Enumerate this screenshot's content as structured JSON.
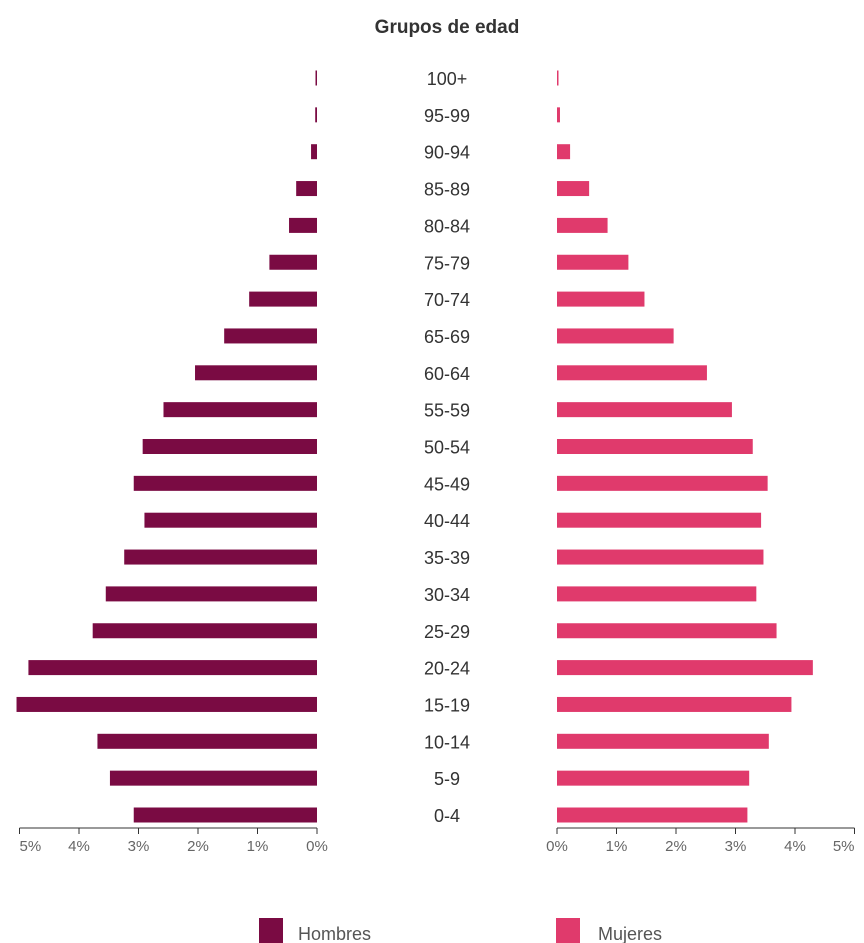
{
  "chart_data": {
    "type": "bar",
    "subtype": "population-pyramid",
    "title": "Grupos de edad",
    "categories": [
      "100+",
      "95-99",
      "90-94",
      "85-89",
      "80-84",
      "75-79",
      "70-74",
      "65-69",
      "60-64",
      "55-59",
      "50-54",
      "45-49",
      "40-44",
      "35-39",
      "30-34",
      "25-29",
      "20-24",
      "15-19",
      "10-14",
      "5-9",
      "0-4"
    ],
    "series": [
      {
        "name": "Hombres",
        "color": "#7a0b43",
        "side": "left",
        "values": [
          0.02,
          0.03,
          0.1,
          0.35,
          0.47,
          0.8,
          1.14,
          1.56,
          2.05,
          2.58,
          2.93,
          3.08,
          2.9,
          3.24,
          3.55,
          3.77,
          4.85,
          5.05,
          3.69,
          3.48,
          3.08
        ]
      },
      {
        "name": "Mujeres",
        "color": "#e03a6c",
        "side": "right",
        "values": [
          0.02,
          0.05,
          0.22,
          0.54,
          0.85,
          1.2,
          1.47,
          1.96,
          2.52,
          2.94,
          3.29,
          3.54,
          3.43,
          3.47,
          3.35,
          3.69,
          4.3,
          3.94,
          3.56,
          3.23,
          3.2
        ]
      }
    ],
    "x_ticks": [
      "0%",
      "1%",
      "2%",
      "3%",
      "4%",
      "5%"
    ],
    "xlim": [
      0,
      5
    ],
    "grid": false,
    "legend": "bottom"
  }
}
